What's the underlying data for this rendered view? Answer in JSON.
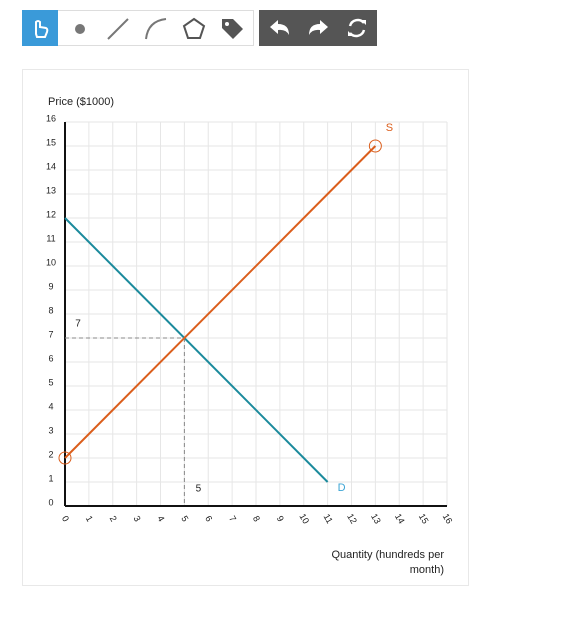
{
  "chart_data": {
    "type": "line",
    "ylabel": "Price ($1000)",
    "xlabel": "Quantity (hundreds per month)",
    "x": [
      0,
      11,
      13
    ],
    "series": [
      {
        "name": "D",
        "color": "#1b8a9c",
        "label_color": "#3aa3d4",
        "values": [
          12,
          1,
          null
        ]
      },
      {
        "name": "S",
        "color": "#db5e1c",
        "label_color": "#db5e1c",
        "values": [
          2,
          13,
          15
        ]
      }
    ],
    "equilibrium": {
      "x": 5,
      "y": 7
    },
    "xlim": [
      0,
      16
    ],
    "ylim": [
      0,
      16
    ],
    "xticks": [
      0,
      1,
      2,
      3,
      4,
      5,
      6,
      7,
      8,
      9,
      10,
      11,
      12,
      13,
      14,
      15,
      16
    ],
    "yticks": [
      0,
      1,
      2,
      3,
      4,
      5,
      6,
      7,
      8,
      9,
      10,
      11,
      12,
      13,
      14,
      15,
      16
    ],
    "grid": true
  }
}
